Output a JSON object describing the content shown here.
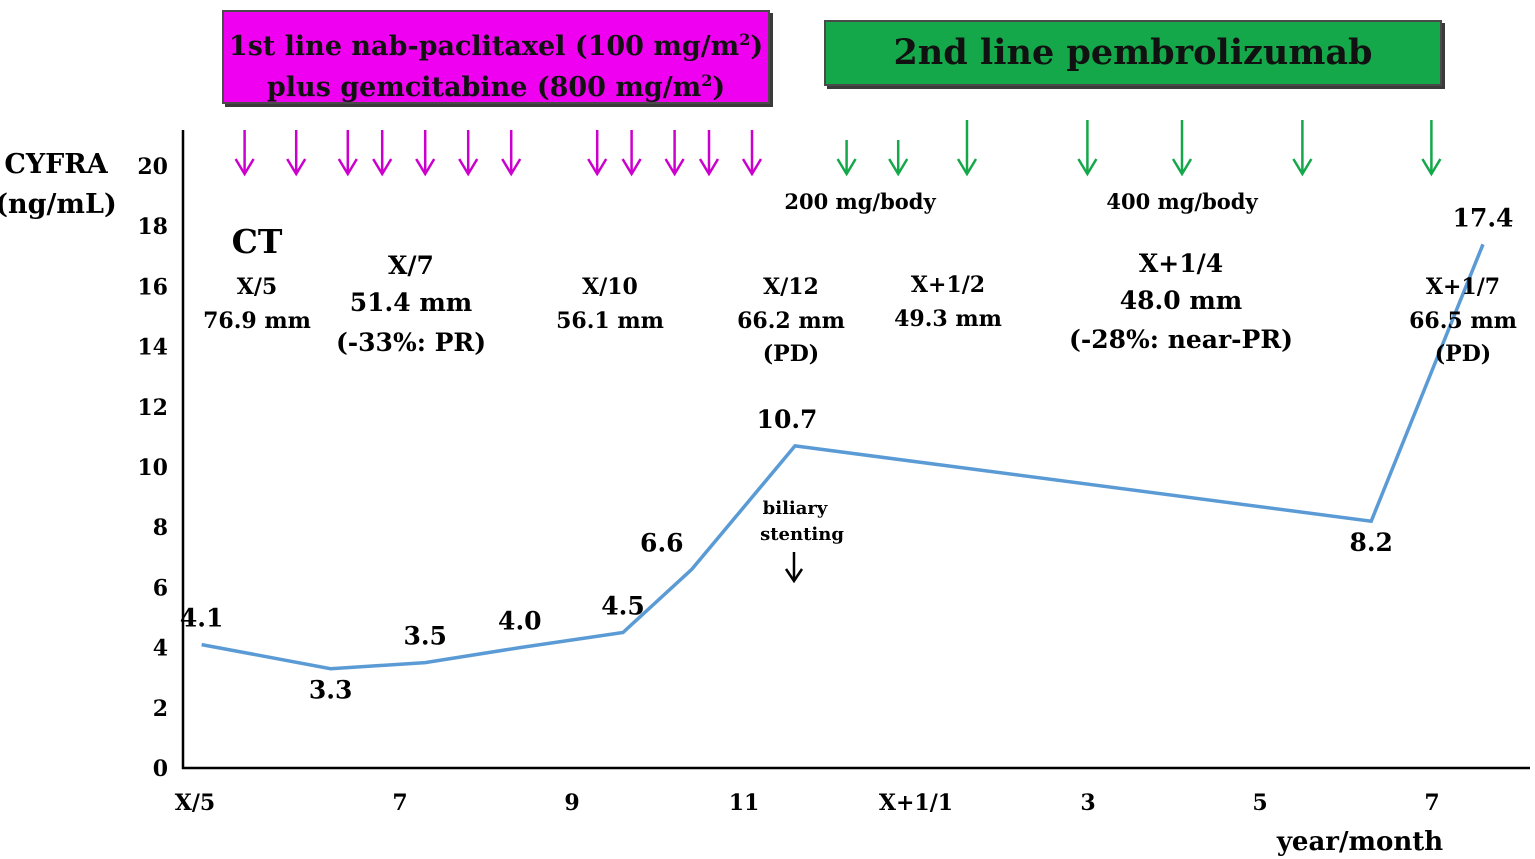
{
  "banners": {
    "first_line_1": "1st line nab-paclitaxel (100 mg/m",
    "first_line_1_sup": "2",
    "first_line_1_end": ")",
    "first_line_2": "plus gemcitabine (800 mg/m",
    "first_line_2_sup": "2",
    "first_line_2_end": ")",
    "second_line": "2nd line pembrolizumab",
    "first_color": "#f000f0",
    "second_color": "#14a84a"
  },
  "doses": {
    "dose_200": "200 mg/body",
    "dose_400": "400 mg/body"
  },
  "ct": {
    "title": "CT",
    "items": [
      {
        "date": "X/5",
        "size": "76.9 mm",
        "note": ""
      },
      {
        "date": "X/7",
        "size": "51.4 mm",
        "note": "(-33%: PR)"
      },
      {
        "date": "X/10",
        "size": "56.1 mm",
        "note": ""
      },
      {
        "date": "X/12",
        "size": "66.2 mm",
        "note": "(PD)"
      },
      {
        "date": "X+1/2",
        "size": "49.3 mm",
        "note": ""
      },
      {
        "date": "X+1/4",
        "size": "48.0 mm",
        "note": "(-28%: near-PR)"
      },
      {
        "date": "X+1/7",
        "size": "66.5 mm",
        "note": "(PD)"
      }
    ]
  },
  "annotation": {
    "line1": "biliary",
    "line2": "stenting"
  },
  "chart_data": {
    "type": "line",
    "ylabel": "CYFRA (ng/mL)",
    "ylabel_line1": "CYFRA",
    "ylabel_line2": "(ng/mL)",
    "xlabel": "year/month",
    "ylim": [
      0,
      21
    ],
    "yticks": [
      0,
      2,
      4,
      6,
      8,
      10,
      12,
      14,
      16,
      18,
      20
    ],
    "xticks": [
      "X/5",
      "7",
      "9",
      "11",
      "X+1/1",
      "3",
      "5",
      "7"
    ],
    "xtick_month_index": [
      0,
      2,
      4,
      6,
      8,
      10,
      12,
      14
    ],
    "x": [
      0.1,
      1.6,
      2.7,
      3.8,
      5.0,
      5.8,
      7.0,
      13.7,
      15.0
    ],
    "values": [
      4.1,
      3.3,
      3.5,
      4.0,
      4.5,
      6.6,
      10.7,
      8.2,
      17.4
    ],
    "labels": [
      "4.1",
      "3.3",
      "3.5",
      "4.0",
      "4.5",
      "6.6",
      "10.7",
      "8.2",
      "17.4"
    ],
    "line_color": "#5b9bd5",
    "first_line_doses_at": [
      0.6,
      1.2,
      1.8,
      2.2,
      2.7,
      3.2,
      3.7,
      4.7,
      5.1,
      5.6,
      6.0,
      6.5
    ],
    "second_line_small_doses_at": [
      7.6,
      8.2
    ],
    "second_line_large_doses_at": [
      9.0,
      10.4,
      11.5,
      12.9,
      14.4
    ]
  }
}
